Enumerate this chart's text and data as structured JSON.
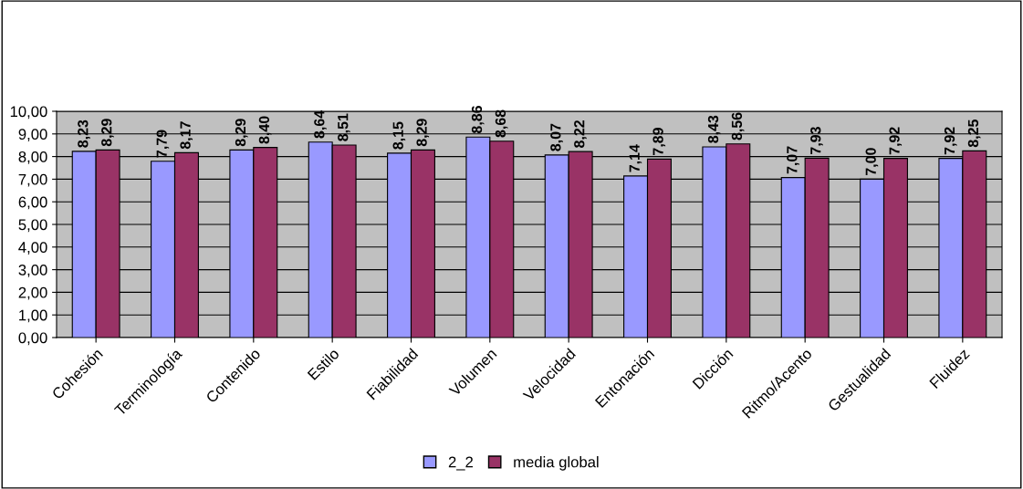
{
  "chart_data": {
    "type": "bar",
    "categories": [
      "Cohesión",
      "Terminología",
      "Contenido",
      "Estilo",
      "Fiabilidad",
      "Volumen",
      "Velocidad",
      "Entonación",
      "Dicción",
      "Ritmo/Acento",
      "Gestualidad",
      "Fluidez"
    ],
    "series": [
      {
        "name": "2_2",
        "color": "#9999ff",
        "values": [
          8.23,
          7.79,
          8.29,
          8.64,
          8.15,
          8.86,
          8.07,
          7.14,
          8.43,
          7.07,
          7.0,
          7.92
        ],
        "value_labels": [
          "8,23",
          "7,79",
          "8,29",
          "8,64",
          "8,15",
          "8,86",
          "8,07",
          "7,14",
          "8,43",
          "7,07",
          "7,00",
          "7,92"
        ]
      },
      {
        "name": "media global",
        "color": "#993366",
        "values": [
          8.29,
          8.17,
          8.4,
          8.51,
          8.29,
          8.68,
          8.22,
          7.89,
          8.56,
          7.93,
          7.92,
          8.25
        ],
        "value_labels": [
          "8,29",
          "8,17",
          "8,40",
          "8,51",
          "8,29",
          "8,68",
          "8,22",
          "7,89",
          "8,56",
          "7,93",
          "7,92",
          "8,25"
        ]
      }
    ],
    "ylim": [
      0,
      10
    ],
    "yticks": [
      {
        "value": 0,
        "label": "0,00"
      },
      {
        "value": 1,
        "label": "1,00"
      },
      {
        "value": 2,
        "label": "2,00"
      },
      {
        "value": 3,
        "label": "3,00"
      },
      {
        "value": 4,
        "label": "4,00"
      },
      {
        "value": 5,
        "label": "5,00"
      },
      {
        "value": 6,
        "label": "6,00"
      },
      {
        "value": 7,
        "label": "7,00"
      },
      {
        "value": 8,
        "label": "8,00"
      },
      {
        "value": 9,
        "label": "9,00"
      },
      {
        "value": 10,
        "label": "10,00"
      }
    ],
    "grid": "y",
    "legend": "bottom"
  }
}
